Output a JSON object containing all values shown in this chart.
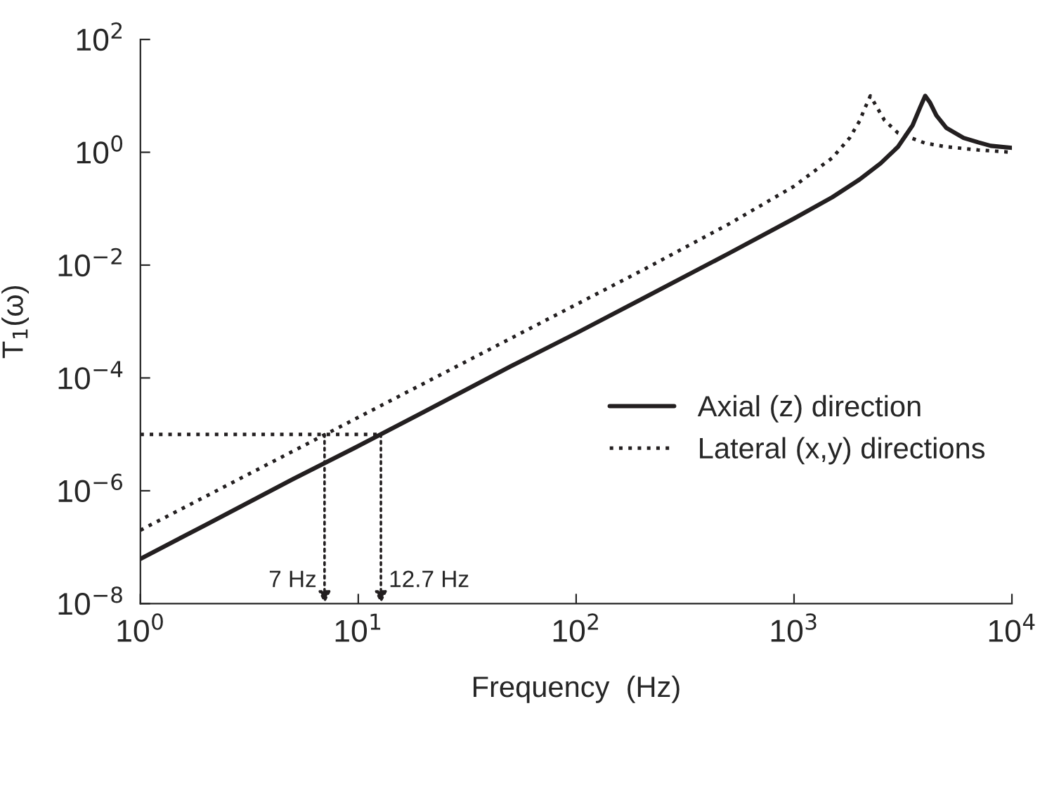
{
  "chart_data": {
    "type": "line",
    "xlabel": "Frequency  (Hz)",
    "ylabel": "T$_{1}$(ω)",
    "log": "xy",
    "xlim": [
      1,
      10000
    ],
    "ylim": [
      1e-08,
      100
    ],
    "xticks": [
      {
        "value": 1,
        "label": "10$^{0}$"
      },
      {
        "value": 10,
        "label": "10$^{1}$"
      },
      {
        "value": 100,
        "label": "10$^{2}$"
      },
      {
        "value": 1000,
        "label": "10$^{3}$"
      },
      {
        "value": 10000,
        "label": "10$^{4}$"
      }
    ],
    "yticks": [
      {
        "value": 1e-08,
        "label": "10$^{−8}$"
      },
      {
        "value": 1e-06,
        "label": "10$^{−6}$"
      },
      {
        "value": 0.0001,
        "label": "10$^{−4}$"
      },
      {
        "value": 0.01,
        "label": "10$^{−2}$"
      },
      {
        "value": 1,
        "label": "10$^{0}$"
      },
      {
        "value": 100,
        "label": "10$^{2}$"
      }
    ],
    "grid": false,
    "legend": "lower right",
    "marker": "none",
    "series": [
      {
        "name": "Axial (z) direction",
        "color": "#231f20",
        "line_style": "solid",
        "x": [
          1,
          2,
          5,
          10,
          20,
          50,
          100,
          200,
          500,
          1000,
          1500,
          2000,
          2500,
          3000,
          3500,
          3800,
          4000,
          4200,
          4500,
          5000,
          6000,
          7000,
          8000,
          10000
        ],
        "values": [
          6.2e-08,
          2.5e-07,
          1.6e-06,
          6.2e-06,
          2.5e-05,
          0.00016,
          0.00062,
          0.0025,
          0.016,
          0.067,
          0.16,
          0.33,
          0.64,
          1.25,
          3.0,
          6.4,
          10,
          7.7,
          4.5,
          2.7,
          1.8,
          1.5,
          1.3,
          1.2
        ]
      },
      {
        "name": "Lateral (x,y) directions",
        "color": "#231f20",
        "line_style": "dotted",
        "x": [
          1,
          2,
          5,
          10,
          20,
          50,
          100,
          200,
          500,
          1000,
          1500,
          1800,
          2000,
          2100,
          2240,
          2400,
          2600,
          3000,
          4000,
          5000,
          7000,
          10000
        ],
        "values": [
          2e-07,
          8e-07,
          5e-06,
          2e-05,
          8e-05,
          0.0005,
          0.002,
          0.008,
          0.053,
          0.25,
          0.8,
          1.8,
          3.6,
          5.7,
          10,
          6.3,
          3.7,
          2.2,
          1.45,
          1.25,
          1.1,
          1.0
        ]
      },
      {
        "color": "#231f20",
        "line_style": "dotted",
        "x": [
          1,
          12.7
        ],
        "values": [
          1e-05,
          1e-05
        ]
      }
    ],
    "annotations": [
      {
        "text": "7 Hz",
        "x": 7,
        "y": 1e-05
      },
      {
        "text": "12.7 Hz",
        "x": 12.7,
        "y": 1e-05
      }
    ]
  }
}
